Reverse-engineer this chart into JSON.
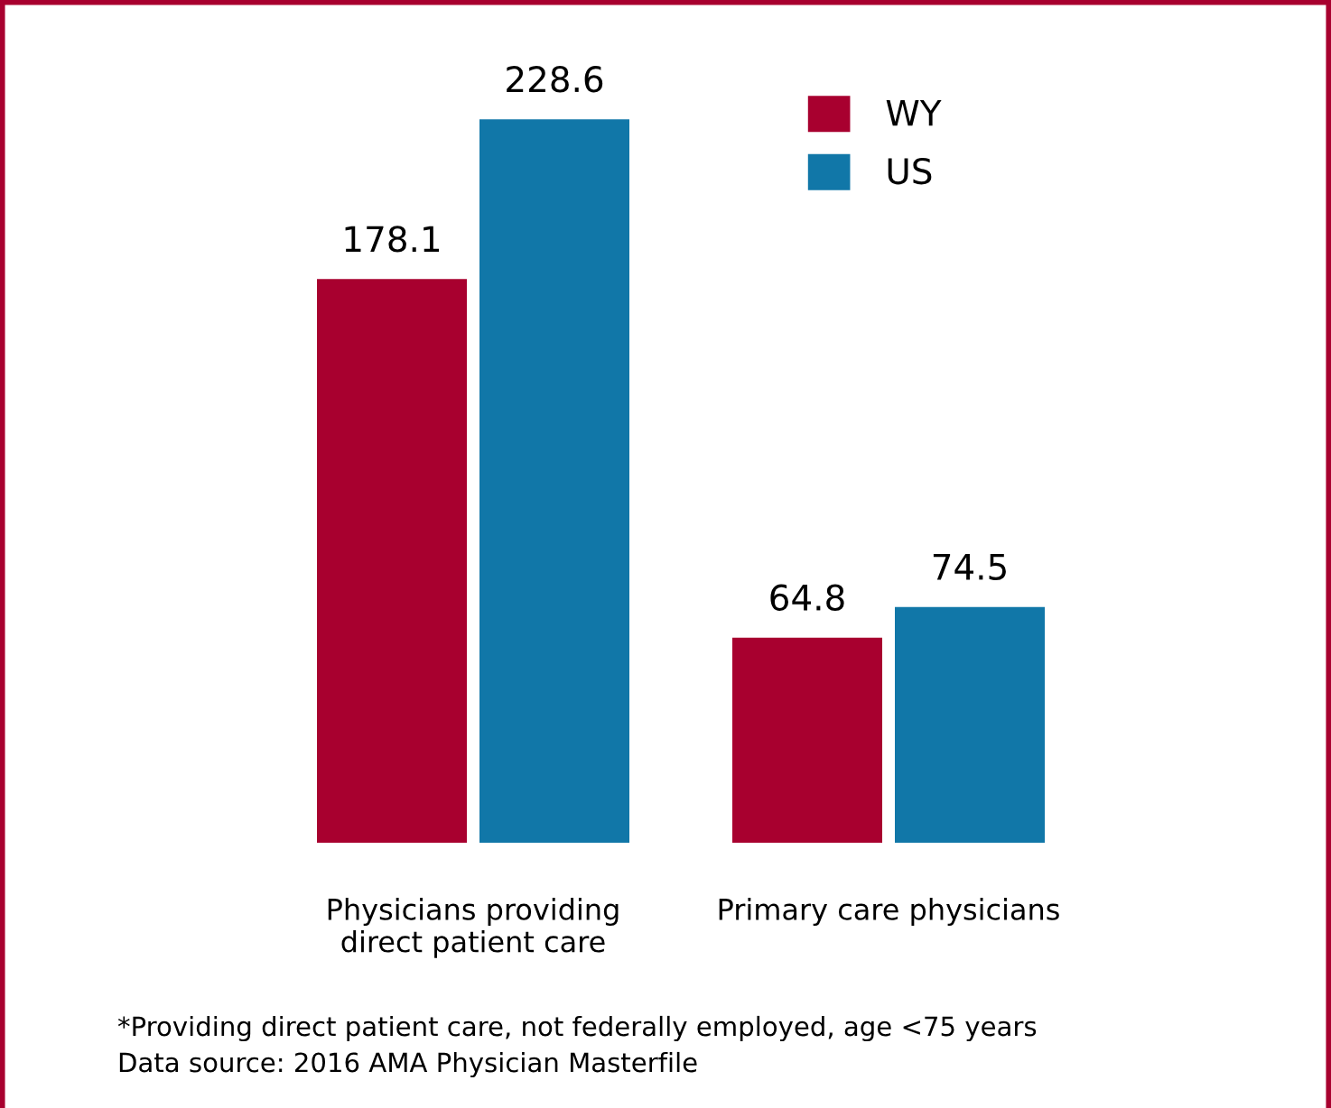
{
  "chart_data": {
    "type": "bar",
    "categories": [
      "Physicians providing\ndirect patient care",
      "Primary care physicians"
    ],
    "series": [
      {
        "name": "WY",
        "color": "#a8002f",
        "values": [
          178.1,
          64.8
        ]
      },
      {
        "name": "US",
        "color": "#1177a8",
        "values": [
          228.6,
          74.5
        ]
      }
    ],
    "tick_labels": "x",
    "data_labels": true,
    "legend": "top right",
    "grid": false,
    "annotations": [
      "*Providing direct patient care, not federally employed, age <75 years",
      "Data source: 2016 AMA Physician Masterfile"
    ]
  }
}
